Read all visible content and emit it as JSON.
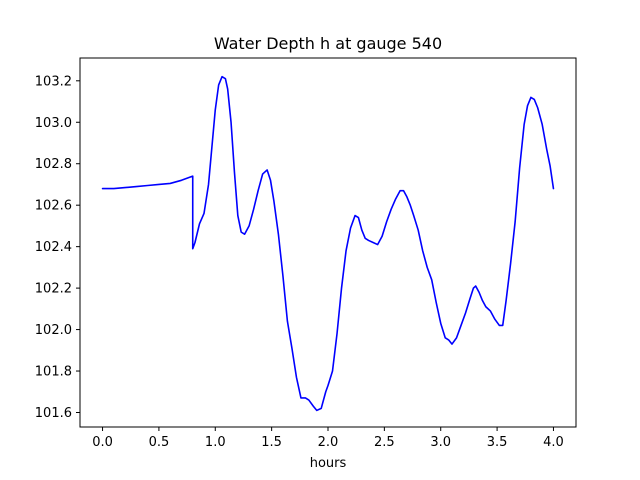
{
  "chart_data": {
    "type": "line",
    "title": "Water Depth h at gauge 540",
    "xlabel": "hours",
    "ylabel": "",
    "xlim": [
      -0.2,
      4.2
    ],
    "ylim": [
      101.53,
      103.31
    ],
    "xticks": [
      0.0,
      0.5,
      1.0,
      1.5,
      2.0,
      2.5,
      3.0,
      3.5,
      4.0
    ],
    "xtick_labels": [
      "0.0",
      "0.5",
      "1.0",
      "1.5",
      "2.0",
      "2.5",
      "3.0",
      "3.5",
      "4.0"
    ],
    "yticks": [
      101.6,
      101.8,
      102.0,
      102.2,
      102.4,
      102.6,
      102.8,
      103.0,
      103.2
    ],
    "ytick_labels": [
      "101.6",
      "101.8",
      "102.0",
      "102.2",
      "102.4",
      "102.6",
      "102.8",
      "103.0",
      "103.2"
    ],
    "grid": false,
    "series": [
      {
        "color": "#0000ff",
        "x": [
          0.0,
          0.1,
          0.2,
          0.3,
          0.4,
          0.5,
          0.6,
          0.7,
          0.8,
          0.8,
          0.82,
          0.86,
          0.9,
          0.94,
          0.97,
          1.0,
          1.03,
          1.06,
          1.09,
          1.11,
          1.14,
          1.17,
          1.2,
          1.23,
          1.26,
          1.3,
          1.34,
          1.38,
          1.42,
          1.46,
          1.49,
          1.52,
          1.56,
          1.6,
          1.64,
          1.68,
          1.72,
          1.76,
          1.8,
          1.83,
          1.87,
          1.9,
          1.94,
          1.98,
          2.0,
          2.04,
          2.08,
          2.12,
          2.16,
          2.2,
          2.24,
          2.27,
          2.3,
          2.33,
          2.36,
          2.4,
          2.44,
          2.48,
          2.52,
          2.56,
          2.6,
          2.64,
          2.67,
          2.7,
          2.73,
          2.76,
          2.8,
          2.84,
          2.88,
          2.92,
          2.96,
          3.0,
          3.04,
          3.07,
          3.1,
          3.14,
          3.18,
          3.22,
          3.26,
          3.29,
          3.31,
          3.34,
          3.37,
          3.4,
          3.44,
          3.48,
          3.52,
          3.55,
          3.58,
          3.62,
          3.66,
          3.7,
          3.74,
          3.77,
          3.8,
          3.83,
          3.86,
          3.9,
          3.94,
          3.97,
          4.0
        ],
        "values": [
          102.68,
          102.68,
          102.685,
          102.69,
          102.695,
          102.7,
          102.705,
          102.72,
          102.74,
          102.39,
          102.42,
          102.51,
          102.56,
          102.7,
          102.88,
          103.06,
          103.18,
          103.22,
          103.21,
          103.16,
          103.0,
          102.76,
          102.55,
          102.47,
          102.46,
          102.5,
          102.58,
          102.67,
          102.75,
          102.77,
          102.72,
          102.62,
          102.46,
          102.26,
          102.04,
          101.91,
          101.77,
          101.67,
          101.67,
          101.66,
          101.63,
          101.61,
          101.62,
          101.7,
          101.73,
          101.8,
          101.98,
          102.2,
          102.38,
          102.49,
          102.55,
          102.54,
          102.48,
          102.44,
          102.43,
          102.42,
          102.41,
          102.45,
          102.52,
          102.58,
          102.63,
          102.67,
          102.67,
          102.64,
          102.6,
          102.55,
          102.48,
          102.38,
          102.3,
          102.24,
          102.13,
          102.03,
          101.96,
          101.95,
          101.93,
          101.96,
          102.02,
          102.08,
          102.15,
          102.2,
          102.21,
          102.18,
          102.14,
          102.11,
          102.09,
          102.05,
          102.02,
          102.02,
          102.14,
          102.32,
          102.52,
          102.78,
          102.99,
          103.08,
          103.12,
          103.11,
          103.07,
          102.99,
          102.87,
          102.79,
          102.68
        ]
      }
    ]
  }
}
